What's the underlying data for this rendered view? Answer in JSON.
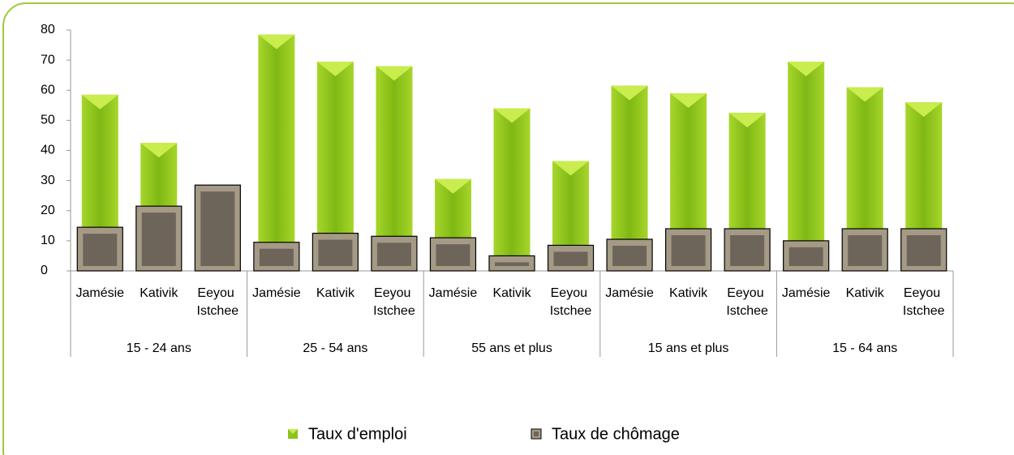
{
  "chart_data": {
    "type": "bar",
    "groups": [
      {
        "name": "15 - 24 ans",
        "categories": [
          "Jamésie",
          "Kativik",
          "Eeyou Istchee"
        ]
      },
      {
        "name": "25 - 54 ans",
        "categories": [
          "Jamésie",
          "Kativik",
          "Eeyou Istchee"
        ]
      },
      {
        "name": "55 ans et plus",
        "categories": [
          "Jamésie",
          "Kativik",
          "Eeyou Istchee"
        ]
      },
      {
        "name": "15 ans et plus",
        "categories": [
          "Jamésie",
          "Kativik",
          "Eeyou Istchee"
        ]
      },
      {
        "name": "15 - 64 ans",
        "categories": [
          "Jamésie",
          "Kativik",
          "Eeyou Istchee"
        ]
      }
    ],
    "series": [
      {
        "name": "Taux d'emploi",
        "color": "#8dc21f",
        "values": [
          58.5,
          42.5,
          null,
          78.5,
          69.5,
          68,
          30.5,
          54,
          36.5,
          61.5,
          59,
          52.5,
          69.5,
          61,
          56
        ]
      },
      {
        "name": "Taux de chômage",
        "color": "#a59a86",
        "values": [
          14.5,
          21.5,
          28.5,
          9.5,
          12.5,
          11.5,
          11,
          5,
          8.5,
          10.5,
          14,
          14,
          10,
          14,
          14
        ]
      }
    ],
    "ylim": [
      0,
      80
    ],
    "yticks": [
      0,
      10,
      20,
      30,
      40,
      50,
      60,
      70,
      80
    ],
    "legend": "bottom"
  }
}
